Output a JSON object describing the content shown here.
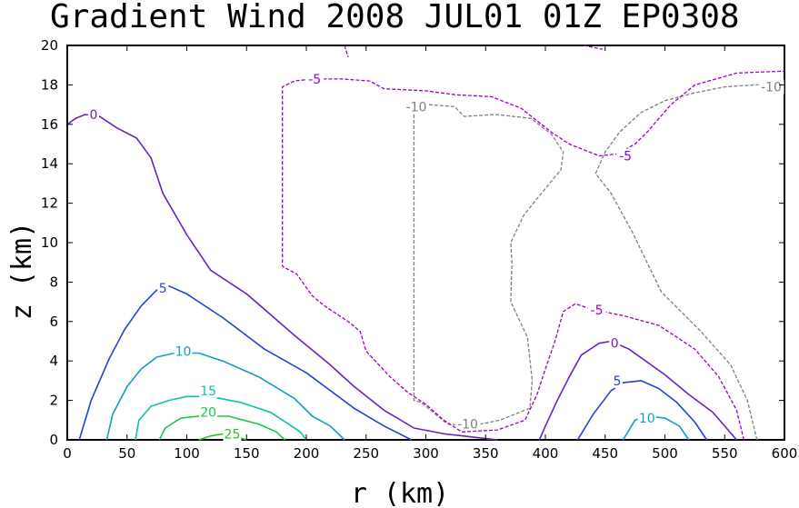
{
  "chart_data": {
    "type": "contour",
    "title": "Gradient Wind 2008 JUL01 01Z  EP0308",
    "xlabel": "r (km)",
    "ylabel": "z (km)",
    "xlim": [
      0,
      600
    ],
    "ylim": [
      0,
      20
    ],
    "xticks": [
      0,
      50,
      100,
      150,
      200,
      250,
      300,
      350,
      400,
      450,
      500,
      550,
      600
    ],
    "yticks": [
      0,
      2,
      4,
      6,
      8,
      10,
      12,
      14,
      16,
      18,
      20
    ],
    "grid": false,
    "contours": [
      {
        "name": "c25",
        "level": -10,
        "label": "-10",
        "color": "#808080",
        "dashed": true,
        "segments": [
          [
            [
              577,
              0
            ],
            [
              569,
              2
            ],
            [
              555,
              3.8
            ],
            [
              530,
              5.5
            ],
            [
              497,
              7.5
            ],
            [
              473,
              10.5
            ],
            [
              455,
              12.5
            ],
            [
              442,
              13.5
            ]
          ],
          [
            [
              442,
              13.5
            ],
            [
              450,
              14.6
            ],
            [
              462,
              15.6
            ],
            [
              480,
              16.6
            ],
            [
              500,
              17.2
            ],
            [
              525,
              17.6
            ],
            [
              550,
              17.9
            ],
            [
              575,
              18
            ],
            [
              600,
              18
            ]
          ],
          [
            [
              290,
              16.5
            ],
            [
              290,
              2
            ],
            [
              296,
              1.9
            ],
            [
              318,
              0.8
            ],
            [
              338,
              0.7
            ],
            [
              362,
              1
            ],
            [
              387,
              1.6
            ],
            [
              389,
              3
            ],
            [
              385,
              5.2
            ],
            [
              371,
              7
            ],
            [
              372,
              9
            ],
            [
              371,
              10
            ],
            [
              382,
              11.4
            ],
            [
              398,
              12.6
            ],
            [
              413,
              13.7
            ],
            [
              415,
              14.6
            ],
            [
              405,
              15.5
            ],
            [
              388,
              16.3
            ],
            [
              359,
              16.5
            ],
            [
              332,
              16.4
            ],
            [
              324,
              16.9
            ],
            [
              302,
              17
            ],
            [
              292,
              16.7
            ]
          ]
        ],
        "labels": [
          [
            335,
            0.8
          ],
          [
            292,
            16.9
          ],
          [
            589,
            17.9
          ]
        ]
      },
      {
        "name": "c5neg",
        "level": -5,
        "label": "-5",
        "color": "#9900cc",
        "dashed": true,
        "segments": [
          [
            [
              566,
              0
            ],
            [
              560,
              1.5
            ],
            [
              545,
              3.2
            ],
            [
              525,
              4.6
            ],
            [
              495,
              5.8
            ],
            [
              465,
              6.3
            ],
            [
              440,
              6.6
            ],
            [
              425,
              6.9
            ],
            [
              415,
              6.5
            ],
            [
              408,
              5
            ],
            [
              400,
              3.6
            ],
            [
              393,
              2.3
            ],
            [
              383,
              1
            ],
            [
              360,
              0.5
            ],
            [
              330,
              0.4
            ],
            [
              315,
              1
            ],
            [
              300,
              1.8
            ],
            [
              285,
              2.4
            ],
            [
              270,
              3.2
            ],
            [
              250,
              4.5
            ],
            [
              245,
              5.5
            ],
            [
              235,
              6
            ],
            [
              215,
              6.8
            ],
            [
              205,
              7.3
            ],
            [
              192,
              8.4
            ],
            [
              180,
              8.8
            ],
            [
              180,
              17.9
            ],
            [
              190,
              18.2
            ],
            [
              205,
              18.3
            ],
            [
              230,
              18.3
            ],
            [
              253,
              18.2
            ],
            [
              265,
              17.8
            ],
            [
              300,
              17.7
            ],
            [
              325,
              17.5
            ],
            [
              355,
              17.4
            ],
            [
              380,
              16.8
            ],
            [
              405,
              15.6
            ],
            [
              420,
              15
            ],
            [
              445,
              14.4
            ],
            [
              460,
              14.5
            ],
            [
              475,
              15
            ],
            [
              485,
              15.6
            ],
            [
              505,
              17
            ],
            [
              525,
              18
            ],
            [
              560,
              18.6
            ],
            [
              600,
              18.7
            ]
          ],
          [
            [
              232,
              20
            ],
            [
              235,
              19.4
            ]
          ],
          [
            [
              432,
              20
            ],
            [
              448,
              19.8
            ]
          ]
        ],
        "labels": [
          [
            207,
            18.3
          ],
          [
            467,
            14.4
          ],
          [
            443,
            6.6
          ]
        ]
      },
      {
        "name": "c0",
        "level": 0,
        "label": "0",
        "color": "#6a22c2",
        "dashed": false,
        "segments": [
          [
            [
              0,
              16
            ],
            [
              7,
              16.3
            ],
            [
              15,
              16.5
            ],
            [
              27,
              16.4
            ],
            [
              42,
              15.8
            ],
            [
              58,
              15.3
            ],
            [
              70,
              14.3
            ],
            [
              80,
              12.5
            ],
            [
              100,
              10.4
            ],
            [
              120,
              8.6
            ],
            [
              150,
              7.4
            ],
            [
              190,
              5.3
            ],
            [
              220,
              3.8
            ],
            [
              240,
              2.7
            ],
            [
              265,
              1.5
            ],
            [
              290,
              0.6
            ],
            [
              316,
              0.3
            ],
            [
              345,
              0.1
            ],
            [
              360,
              0
            ]
          ],
          [
            [
              395,
              0
            ],
            [
              400,
              0.7
            ],
            [
              410,
              2
            ],
            [
              420,
              3.2
            ],
            [
              430,
              4.3
            ],
            [
              445,
              4.9
            ],
            [
              455,
              5
            ],
            [
              470,
              4.6
            ],
            [
              500,
              3.3
            ],
            [
              520,
              2.3
            ],
            [
              540,
              1.4
            ],
            [
              560,
              0
            ]
          ]
        ],
        "labels": [
          [
            22,
            16.5
          ],
          [
            458,
            4.9
          ]
        ]
      },
      {
        "name": "c5",
        "level": 5,
        "label": "5",
        "color": "#2244d6",
        "dashed": false,
        "segments": [
          [
            [
              10,
              0
            ],
            [
              20,
              2
            ],
            [
              35,
              4.1
            ],
            [
              48,
              5.6
            ],
            [
              62,
              6.8
            ],
            [
              75,
              7.6
            ],
            [
              85,
              7.8
            ],
            [
              100,
              7.4
            ],
            [
              130,
              6.2
            ],
            [
              165,
              4.6
            ],
            [
              200,
              3.4
            ],
            [
              240,
              1.6
            ],
            [
              265,
              0.7
            ],
            [
              288,
              0
            ]
          ],
          [
            [
              427,
              0
            ],
            [
              440,
              1.3
            ],
            [
              455,
              2.5
            ],
            [
              465,
              2.9
            ],
            [
              480,
              3
            ],
            [
              495,
              2.6
            ],
            [
              510,
              1.9
            ],
            [
              525,
              0.9
            ],
            [
              535,
              0
            ]
          ]
        ],
        "labels": [
          [
            80,
            7.7
          ],
          [
            460,
            3
          ]
        ]
      },
      {
        "name": "c10",
        "level": 10,
        "label": "10",
        "color": "#0d9ec9",
        "dashed": false,
        "segments": [
          [
            [
              33,
              0
            ],
            [
              38,
              1.3
            ],
            [
              50,
              2.7
            ],
            [
              62,
              3.6
            ],
            [
              75,
              4.2
            ],
            [
              90,
              4.4
            ],
            [
              110,
              4.4
            ],
            [
              130,
              4
            ],
            [
              160,
              3.2
            ],
            [
              190,
              2.1
            ],
            [
              205,
              1.2
            ],
            [
              220,
              0.7
            ],
            [
              232,
              0
            ]
          ],
          [
            [
              465,
              0
            ],
            [
              475,
              1
            ],
            [
              485,
              1.2
            ],
            [
              500,
              1.1
            ],
            [
              512,
              0.7
            ],
            [
              520,
              0
            ]
          ]
        ],
        "labels": [
          [
            97,
            4.5
          ],
          [
            485,
            1.1
          ]
        ]
      },
      {
        "name": "c15",
        "level": 15,
        "label": "15",
        "color": "#0ec0a8",
        "dashed": false,
        "segments": [
          [
            [
              57,
              0
            ],
            [
              60,
              1
            ],
            [
              70,
              1.7
            ],
            [
              85,
              2
            ],
            [
              100,
              2.2
            ],
            [
              120,
              2.2
            ],
            [
              145,
              1.9
            ],
            [
              170,
              1.4
            ],
            [
              185,
              0.8
            ],
            [
              195,
              0.4
            ],
            [
              200,
              0
            ]
          ]
        ],
        "labels": [
          [
            118,
            2.5
          ]
        ]
      },
      {
        "name": "c20",
        "level": 20,
        "label": "20",
        "color": "#16c94a",
        "dashed": false,
        "segments": [
          [
            [
              77,
              0
            ],
            [
              82,
              0.6
            ],
            [
              95,
              1.1
            ],
            [
              110,
              1.2
            ],
            [
              135,
              1.2
            ],
            [
              160,
              0.8
            ],
            [
              175,
              0.4
            ],
            [
              182,
              0
            ]
          ]
        ],
        "labels": [
          [
            118,
            1.4
          ]
        ]
      },
      {
        "name": "c25",
        "level": 25,
        "label": "25",
        "color": "#22c22d",
        "dashed": false,
        "segments": [
          [
            [
              110,
              0
            ],
            [
              120,
              0.2
            ],
            [
              130,
              0.3
            ],
            [
              140,
              0.2
            ],
            [
              150,
              0
            ]
          ]
        ],
        "labels": [
          [
            138,
            0.3
          ]
        ]
      }
    ]
  }
}
